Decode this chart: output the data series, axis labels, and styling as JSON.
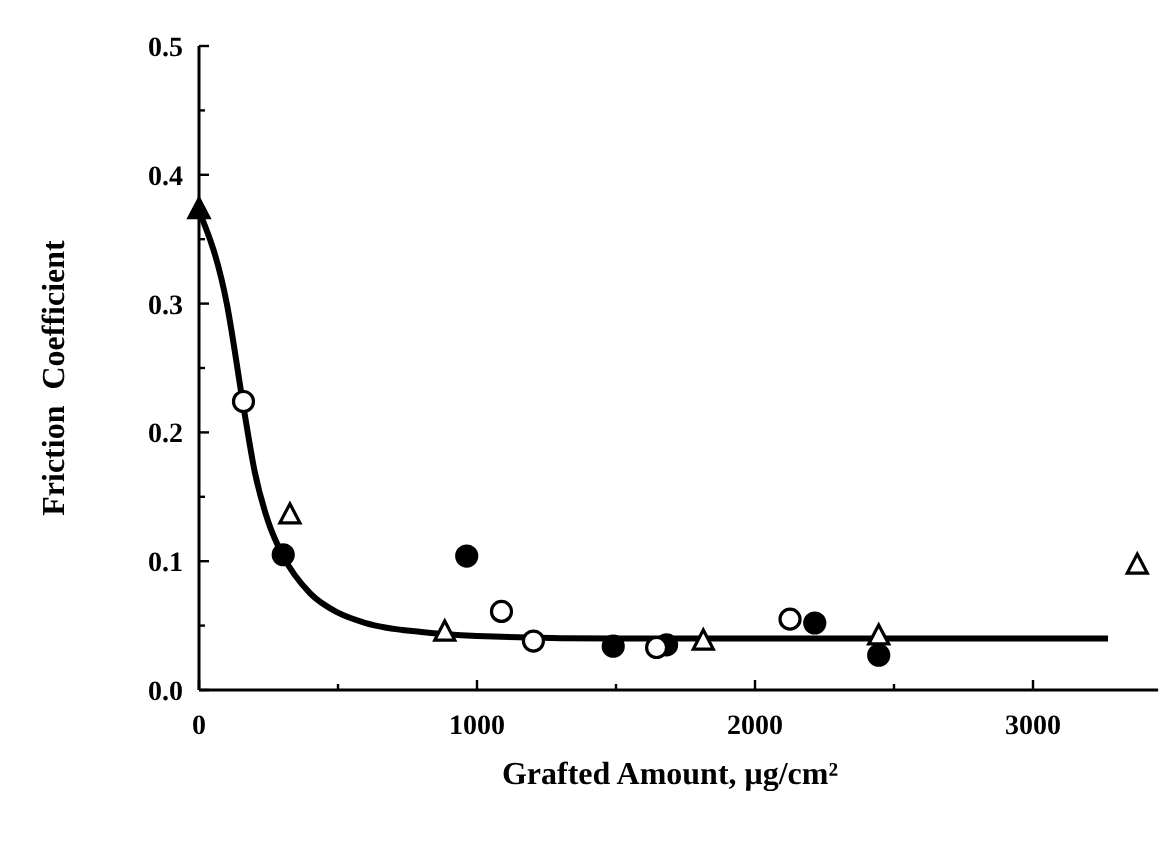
{
  "chart_data": {
    "type": "scatter",
    "xlabel": "Grafted Amount, μg/cm²",
    "ylabel": "Friction  Coefficient",
    "xlim": [
      0,
      3450
    ],
    "ylim": [
      0,
      0.5
    ],
    "xticks": [
      0,
      {
        "value": 500,
        "label": null
      },
      1000,
      {
        "value": 1500,
        "label": null
      },
      2000,
      {
        "value": 2500,
        "label": null
      },
      3000
    ],
    "yticks": [
      {
        "value": 0,
        "label": "0.0"
      },
      {
        "value": 0.05,
        "label": null
      },
      {
        "value": 0.1,
        "label": "0.1"
      },
      {
        "value": 0.15,
        "label": null
      },
      {
        "value": 0.2,
        "label": "0.2"
      },
      {
        "value": 0.25,
        "label": null
      },
      {
        "value": 0.3,
        "label": "0.3"
      },
      {
        "value": 0.35,
        "label": null
      },
      {
        "value": 0.4,
        "label": "0.4"
      },
      {
        "value": 0.45,
        "label": null
      },
      {
        "value": 0.5,
        "label": "0.5"
      }
    ],
    "grid": false,
    "series": [
      {
        "type": "line",
        "color": "#000000",
        "marker": "none",
        "line_style": "solid",
        "x": [
          0,
          100,
          160,
          200,
          250,
          300,
          400,
          500,
          600,
          800,
          1000,
          1500,
          2000,
          3270
        ],
        "values": [
          0.372,
          0.3,
          0.22,
          0.17,
          0.13,
          0.105,
          0.075,
          0.06,
          0.052,
          0.045,
          0.042,
          0.04,
          0.04,
          0.04
        ]
      },
      {
        "color": "#000000",
        "marker": "circle",
        "x": [
          303,
          963,
          1490,
          1682,
          2215,
          2445
        ],
        "values": [
          0.105,
          0.104,
          0.034,
          0.035,
          0.052,
          0.027
        ]
      },
      {
        "color": "#ffffff",
        "marker": "circle",
        "x": [
          160,
          1088,
          1203,
          1646,
          2126
        ],
        "values": [
          0.224,
          0.061,
          0.038,
          0.033,
          0.055
        ]
      },
      {
        "color": "#ffffff",
        "marker": "triangle",
        "x": [
          327,
          884,
          1814,
          2445,
          3375
        ],
        "values": [
          0.136,
          0.045,
          0.038,
          0.042,
          0.097
        ]
      },
      {
        "color": "#000000",
        "marker": "triangle",
        "x": [
          0
        ],
        "values": [
          0.373
        ]
      }
    ]
  }
}
